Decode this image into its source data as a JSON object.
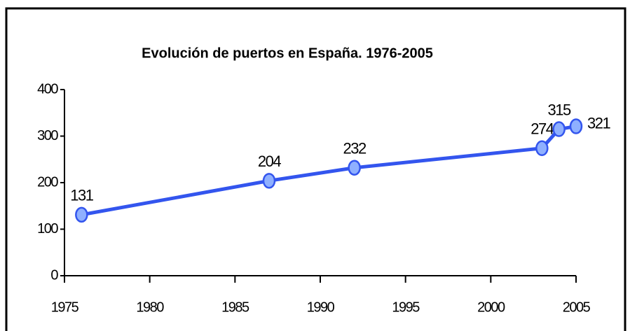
{
  "chart_data": {
    "type": "line",
    "title": "Evolución de puertos en España. 1976-2005",
    "x": [
      1976,
      1987,
      1992,
      2003,
      2004,
      2005
    ],
    "series": [
      {
        "color": "#3355ee",
        "values": [
          131,
          204,
          232,
          274,
          315,
          321
        ]
      }
    ],
    "xlim": [
      1975,
      2005
    ],
    "xticks": [
      1975,
      1980,
      1985,
      1990,
      1995,
      2000,
      2005
    ],
    "ylim": [
      0,
      400
    ],
    "yticks": [
      0,
      100,
      200,
      300,
      400
    ]
  }
}
